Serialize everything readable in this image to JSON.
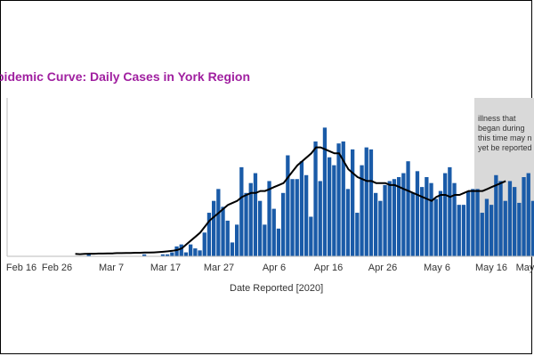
{
  "chart_data": {
    "type": "bar",
    "title": "pidemic Curve: Daily Cases in York Region",
    "xlabel": "Date Reported [2020]",
    "ylabel": "",
    "x_ticks": [
      "Feb 16",
      "Feb 26",
      "Mar 7",
      "Mar 17",
      "Mar 27",
      "Apr 6",
      "Apr 16",
      "Apr 26",
      "May 6",
      "May 16",
      "May"
    ],
    "x_start": "Feb 27",
    "y_range": [
      0,
      80
    ],
    "grid": false,
    "colors": {
      "bars": "#1a5ba8",
      "line": "#000000",
      "shade": "#d9d9d9",
      "title": "#a020a0"
    },
    "annotation": {
      "text_lines": [
        "illness that",
        "began during",
        "this time may n",
        "yet be reported"
      ],
      "shaded_from": "May 14"
    },
    "bar_series": {
      "name": "Daily cases",
      "values": [
        0,
        0,
        0,
        1,
        0,
        0,
        0,
        0,
        0,
        0,
        0,
        0,
        0,
        0,
        0,
        1,
        0,
        0,
        0,
        1,
        1,
        2,
        5,
        6,
        2,
        6,
        4,
        3,
        12,
        22,
        28,
        34,
        25,
        18,
        7,
        16,
        45,
        32,
        37,
        42,
        28,
        16,
        38,
        24,
        14,
        32,
        51,
        39,
        39,
        48,
        41,
        20,
        58,
        38,
        65,
        50,
        46,
        57,
        58,
        34,
        54,
        22,
        46,
        55,
        54,
        32,
        28,
        36,
        38,
        39,
        40,
        42,
        48,
        32,
        43,
        35,
        40,
        37,
        29,
        33,
        42,
        45,
        37,
        26,
        26,
        33,
        34,
        34,
        22,
        29,
        26,
        41,
        38,
        28,
        38,
        35,
        27,
        40,
        42,
        28,
        44,
        34,
        37,
        50,
        40
      ],
      "note": "values are approximate daily case counts (y scale roughly 0–80)"
    },
    "line_series": {
      "name": "7-day average",
      "values": [
        1.2,
        1.1,
        1.2,
        1.3,
        1.3,
        1.4,
        1.4,
        1.5,
        1.5,
        1.6,
        1.6,
        1.7,
        1.7,
        1.8,
        1.8,
        1.9,
        1.9,
        2.0,
        2.1,
        2.3,
        2.5,
        2.8,
        3.2,
        4,
        6,
        8,
        10,
        12,
        15,
        18,
        20,
        22,
        24,
        26,
        27,
        28,
        30,
        31,
        32,
        32,
        33,
        33,
        34,
        35,
        36,
        37,
        40,
        43,
        46,
        48,
        50,
        52,
        55,
        55,
        54,
        53,
        52,
        52,
        48,
        44,
        42,
        40,
        39,
        38,
        38,
        37,
        37,
        37,
        36,
        36,
        35,
        34,
        33,
        32,
        31,
        30,
        29,
        28,
        30,
        31,
        31,
        30,
        31,
        31,
        32,
        33,
        33,
        33,
        33,
        34,
        35,
        36,
        37,
        38
      ]
    }
  }
}
